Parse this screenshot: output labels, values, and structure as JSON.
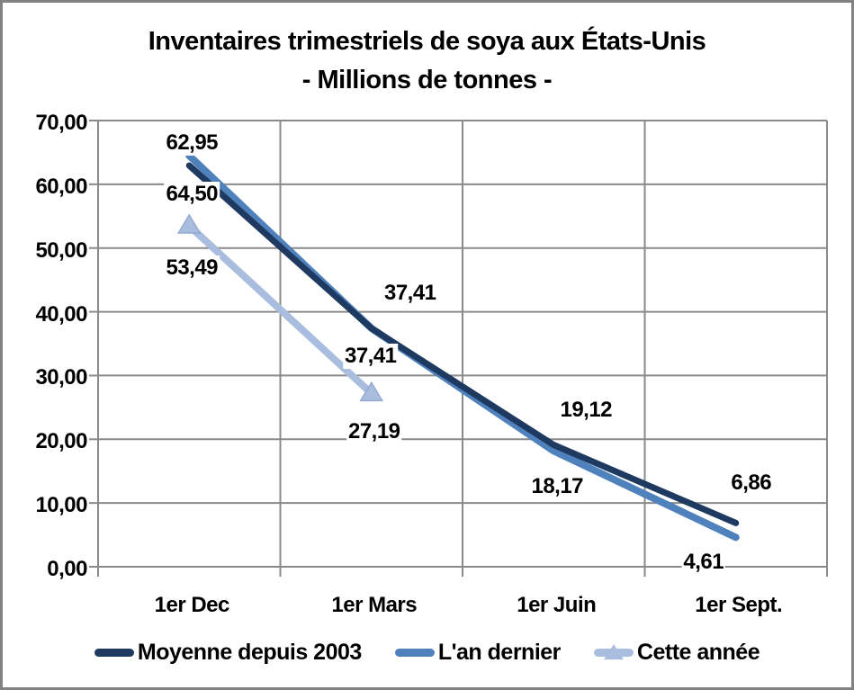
{
  "title": {
    "line1": "Inventaires trimestriels de soya aux États-Unis",
    "line2": "- Millions de tonnes -"
  },
  "colors": {
    "grid": "#8a8a8a",
    "axis": "#8a8a8a",
    "frame_border": "#828282",
    "text": "#000000",
    "series_navy": "#1F3A60",
    "series_blue": "#4F81BD",
    "series_light": "#A9BDDE",
    "marker_stroke": "#93AAD1"
  },
  "chart_data": {
    "type": "line",
    "categories": [
      "1er Dec",
      "1er Mars",
      "1er Juin",
      "1er Sept."
    ],
    "y_axis": {
      "min": 0,
      "max": 70,
      "step": 10,
      "tick_labels": [
        "0,00",
        "10,00",
        "20,00",
        "30,00",
        "40,00",
        "50,00",
        "60,00",
        "70,00"
      ]
    },
    "grid": true,
    "legend_position": "bottom",
    "series": [
      {
        "name": "Moyenne depuis 2003",
        "color": "#1F3A60",
        "marker": "none",
        "stroke_width": 7,
        "values": [
          62.95,
          37.41,
          19.12,
          6.86
        ],
        "labels": [
          "62,95",
          "37,41",
          "19,12",
          "6,86"
        ],
        "label_offsets": [
          [
            0,
            -28
          ],
          [
            40,
            -42
          ],
          [
            33,
            -42
          ],
          [
            14,
            -47
          ]
        ]
      },
      {
        "name": "L'an dernier",
        "color": "#4F81BD",
        "marker": "none",
        "stroke_width": 8,
        "values": [
          64.5,
          37.41,
          18.17,
          4.61
        ],
        "labels": [
          "64,50",
          "37,41",
          "18,17",
          "4,61"
        ],
        "label_offsets": [
          [
            0,
            40
          ],
          [
            -4,
            28
          ],
          [
            1,
            37
          ],
          [
            -39,
            25
          ]
        ]
      },
      {
        "name": "Cette année",
        "color": "#A9BDDE",
        "marker": "triangle",
        "stroke_width": 8,
        "values": [
          53.49,
          27.19,
          null,
          null
        ],
        "labels": [
          "53,49",
          "27,19"
        ],
        "label_offsets": [
          [
            0,
            44
          ],
          [
            0,
            40
          ]
        ]
      }
    ]
  }
}
